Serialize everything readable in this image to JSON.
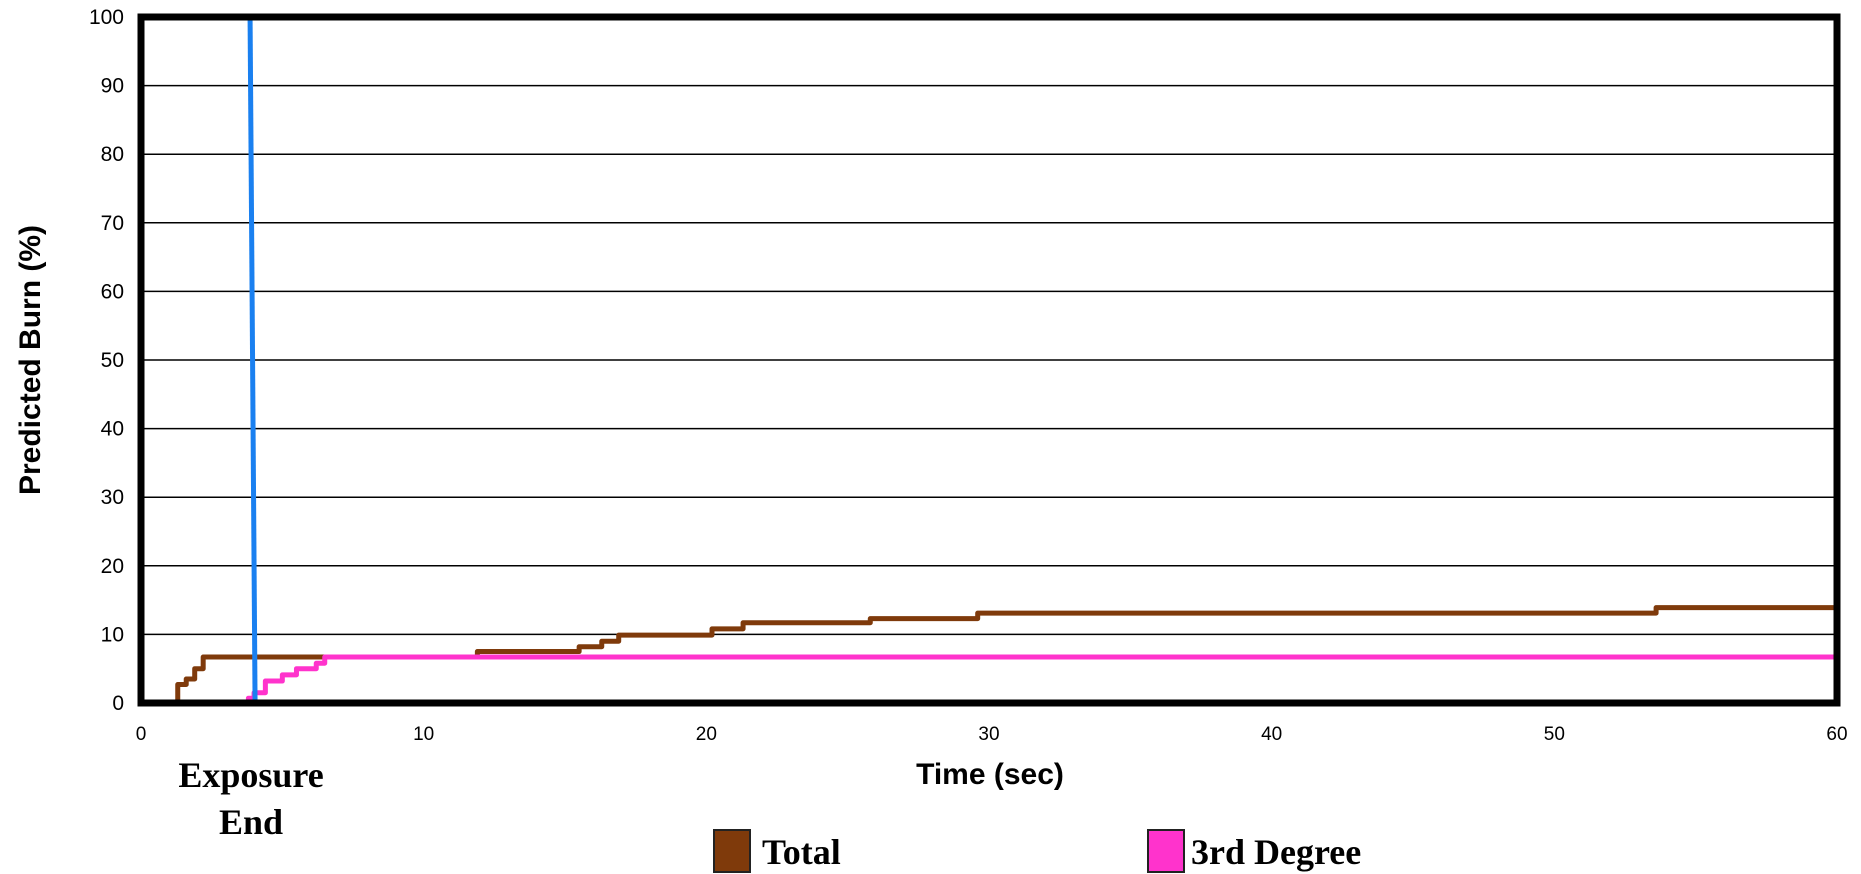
{
  "chart_data": {
    "type": "line",
    "title": "",
    "xlabel": "Time (sec)",
    "ylabel": "Predicted Burn (%)",
    "xlim": [
      0,
      60
    ],
    "ylim": [
      0,
      100
    ],
    "x_ticks": [
      0,
      10,
      20,
      30,
      40,
      50,
      60
    ],
    "y_ticks": [
      0,
      10,
      20,
      30,
      40,
      50,
      60,
      70,
      80,
      90,
      100
    ],
    "grid": "horizontal",
    "legend_position": "bottom",
    "colors": {
      "total": "#7f3a0b",
      "third_degree": "#ff33cc",
      "exposure": "#1a80f0"
    },
    "series": [
      {
        "name": "Total",
        "step": true,
        "points": [
          [
            1.1,
            0
          ],
          [
            1.3,
            2.7
          ],
          [
            1.6,
            3.5
          ],
          [
            1.9,
            5
          ],
          [
            2.2,
            6.7
          ],
          [
            11.9,
            7.5
          ],
          [
            15.5,
            8.2
          ],
          [
            16.3,
            9
          ],
          [
            16.9,
            9.9
          ],
          [
            20.2,
            10.8
          ],
          [
            21.3,
            11.7
          ],
          [
            25.8,
            12.3
          ],
          [
            29.6,
            13.1
          ],
          [
            53.6,
            13.9
          ],
          [
            60,
            13.9
          ]
        ]
      },
      {
        "name": "3rd Degree",
        "step": true,
        "points": [
          [
            3.5,
            0
          ],
          [
            3.8,
            0.7
          ],
          [
            4.0,
            1.5
          ],
          [
            4.4,
            3.2
          ],
          [
            5.0,
            4.1
          ],
          [
            5.5,
            5
          ],
          [
            6.2,
            5.8
          ],
          [
            6.5,
            6.7
          ],
          [
            60,
            6.7
          ]
        ]
      }
    ],
    "markers": [
      {
        "label_line1": "Exposure",
        "label_line2": "End",
        "x": 4.0
      }
    ]
  }
}
